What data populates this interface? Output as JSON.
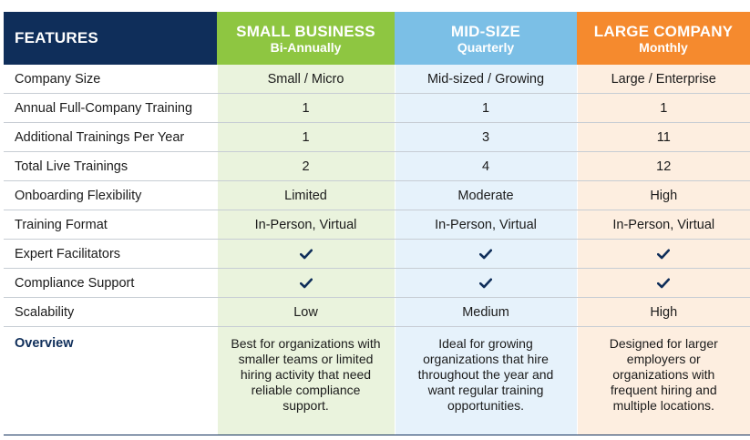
{
  "header": {
    "features": "FEATURES",
    "plans": [
      {
        "name": "SMALL BUSINESS",
        "frequency": "Bi-Annually"
      },
      {
        "name": "MID-SIZE",
        "frequency": "Quarterly"
      },
      {
        "name": "LARGE COMPANY",
        "frequency": "Monthly"
      }
    ]
  },
  "colors": {
    "navy": "#0f2e5a",
    "green": "#8ec641",
    "blue": "#7bbfe6",
    "orange": "#f58a2e"
  },
  "rows": [
    {
      "label": "Company Size",
      "values": [
        "Small / Micro",
        "Mid-sized / Growing",
        "Large / Enterprise"
      ]
    },
    {
      "label": "Annual Full-Company Training",
      "values": [
        "1",
        "1",
        "1"
      ]
    },
    {
      "label": "Additional Trainings Per Year",
      "values": [
        "1",
        "3",
        "11"
      ]
    },
    {
      "label": "Total Live Trainings",
      "values": [
        "2",
        "4",
        "12"
      ]
    },
    {
      "label": "Onboarding Flexibility",
      "values": [
        "Limited",
        "Moderate",
        "High"
      ]
    },
    {
      "label": "Training Format",
      "values": [
        "In-Person, Virtual",
        "In-Person, Virtual",
        "In-Person, Virtual"
      ]
    },
    {
      "label": "Expert Facilitators",
      "icon": "checkmark-icon"
    },
    {
      "label": "Compliance Support",
      "icon": "checkmark-icon"
    },
    {
      "label": "Scalability",
      "values": [
        "Low",
        "Medium",
        "High"
      ]
    }
  ],
  "overview": {
    "label": "Overview",
    "values": [
      "Best for organizations with smaller teams or limited hiring activity that need reliable compliance support.",
      "Ideal for growing organizations that hire throughout the year and want regular training opportunities.",
      "Designed for larger employers or organizations with frequent hiring and multiple locations."
    ]
  }
}
